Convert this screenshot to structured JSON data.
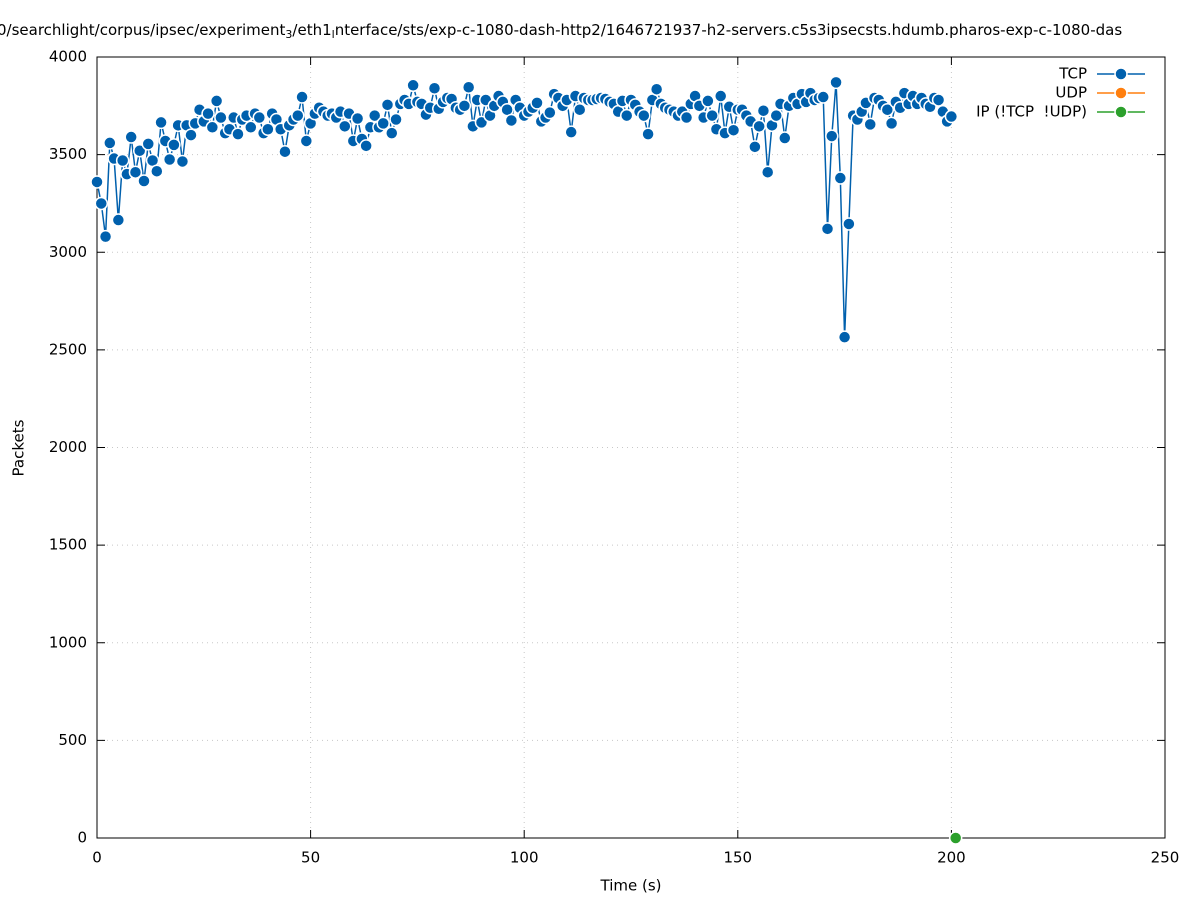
{
  "chart_data": {
    "type": "line",
    "title": [
      "0/searchlight/corpus/ipsec/experiment",
      "3",
      "/eth1",
      "l",
      "nterface/sts/exp-c-1080-dash-http2/1646721937-h2-servers.c5s3ipsecsts.hdumb.pharos-exp-c-1080-das"
    ],
    "xlabel": "Time (s)",
    "ylabel": "Packets",
    "xlim": [
      0,
      250
    ],
    "xticks": [
      0,
      50,
      100,
      150,
      200,
      250
    ],
    "ylim": [
      0,
      4000
    ],
    "yticks": [
      0,
      500,
      1000,
      1500,
      2000,
      2500,
      3000,
      3500,
      4000
    ],
    "grid": true,
    "legend": "top-right",
    "series": [
      {
        "name": "TCP",
        "color": "#0060ad",
        "x": [
          0,
          1,
          2,
          3,
          4,
          5,
          6,
          7,
          8,
          9,
          10,
          11,
          12,
          13,
          14,
          15,
          16,
          17,
          18,
          19,
          20,
          21,
          22,
          23,
          24,
          25,
          26,
          27,
          28,
          29,
          30,
          31,
          32,
          33,
          34,
          35,
          36,
          37,
          38,
          39,
          40,
          41,
          42,
          43,
          44,
          45,
          46,
          47,
          48,
          49,
          50,
          51,
          52,
          53,
          54,
          55,
          56,
          57,
          58,
          59,
          60,
          61,
          62,
          63,
          64,
          65,
          66,
          67,
          68,
          69,
          70,
          71,
          72,
          73,
          74,
          75,
          76,
          77,
          78,
          79,
          80,
          81,
          82,
          83,
          84,
          85,
          86,
          87,
          88,
          89,
          90,
          91,
          92,
          93,
          94,
          95,
          96,
          97,
          98,
          99,
          100,
          101,
          102,
          103,
          104,
          105,
          106,
          107,
          108,
          109,
          110,
          111,
          112,
          113,
          114,
          115,
          116,
          117,
          118,
          119,
          120,
          121,
          122,
          123,
          124,
          125,
          126,
          127,
          128,
          129,
          130,
          131,
          132,
          133,
          134,
          135,
          136,
          137,
          138,
          139,
          140,
          141,
          142,
          143,
          144,
          145,
          146,
          147,
          148,
          149,
          150,
          151,
          152,
          153,
          154,
          155,
          156,
          157,
          158,
          159,
          160,
          161,
          162,
          163,
          164,
          165,
          166,
          167,
          168,
          169,
          170,
          171,
          172,
          173,
          174,
          175,
          176,
          177,
          178,
          179,
          180,
          181,
          182,
          183,
          184,
          185,
          186,
          187,
          188,
          189,
          190,
          191,
          192,
          193,
          194,
          195,
          196,
          197,
          198,
          199,
          200
        ],
        "values": [
          3360,
          3250,
          3080,
          3560,
          3480,
          3165,
          3470,
          3400,
          3590,
          3410,
          3520,
          3365,
          3555,
          3470,
          3415,
          3665,
          3570,
          3475,
          3550,
          3650,
          3465,
          3650,
          3600,
          3660,
          3730,
          3670,
          3710,
          3640,
          3775,
          3690,
          3610,
          3630,
          3690,
          3605,
          3680,
          3700,
          3640,
          3710,
          3690,
          3610,
          3630,
          3710,
          3680,
          3630,
          3515,
          3650,
          3680,
          3700,
          3795,
          3570,
          3660,
          3710,
          3740,
          3720,
          3700,
          3710,
          3690,
          3720,
          3645,
          3710,
          3570,
          3685,
          3580,
          3545,
          3640,
          3700,
          3640,
          3660,
          3755,
          3610,
          3680,
          3760,
          3780,
          3760,
          3855,
          3770,
          3760,
          3705,
          3740,
          3840,
          3735,
          3770,
          3790,
          3785,
          3740,
          3730,
          3750,
          3845,
          3645,
          3780,
          3665,
          3780,
          3700,
          3750,
          3800,
          3770,
          3730,
          3675,
          3780,
          3740,
          3700,
          3720,
          3740,
          3765,
          3670,
          3690,
          3715,
          3810,
          3790,
          3750,
          3780,
          3615,
          3800,
          3730,
          3790,
          3780,
          3780,
          3785,
          3790,
          3785,
          3770,
          3760,
          3720,
          3775,
          3700,
          3780,
          3755,
          3720,
          3700,
          3605,
          3780,
          3835,
          3760,
          3740,
          3730,
          3720,
          3700,
          3720,
          3690,
          3760,
          3800,
          3750,
          3690,
          3775,
          3700,
          3630,
          3800,
          3610,
          3745,
          3625,
          3730,
          3730,
          3700,
          3670,
          3540,
          3645,
          3725,
          3410,
          3650,
          3700,
          3760,
          3585,
          3750,
          3790,
          3760,
          3810,
          3770,
          3815,
          3780,
          3790,
          3795,
          3120,
          3595,
          3870,
          3380,
          2565,
          3145,
          3700,
          3680,
          3720,
          3765,
          3655,
          3790,
          3780,
          3750,
          3730,
          3660,
          3770,
          3740,
          3815,
          3760,
          3800,
          3760,
          3790,
          3760,
          3745,
          3790,
          3780,
          3720,
          3670,
          3695
        ]
      },
      {
        "name": "UDP",
        "color": "#ff7f0e",
        "x": [],
        "values": []
      },
      {
        "name": "IP (!TCP  !UDP)",
        "color": "#2ca02c",
        "x": [
          201
        ],
        "values": [
          0
        ]
      }
    ]
  }
}
